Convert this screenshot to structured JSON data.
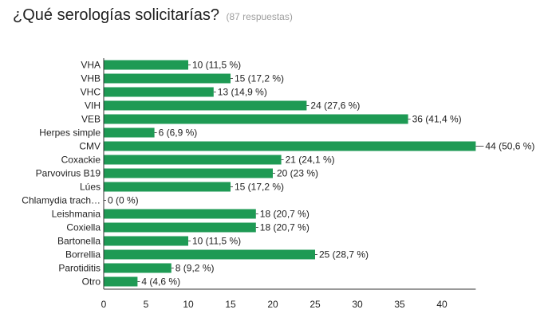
{
  "header": {
    "title": "¿Qué serologías solicitarías?",
    "subtitle": "(87 respuestas)"
  },
  "chart_data": {
    "type": "bar",
    "orientation": "horizontal",
    "categories": [
      "VHA",
      "VHB",
      "VHC",
      "VIH",
      "VEB",
      "Herpes simple",
      "CMV",
      "Coxackie",
      "Parvovirus B19",
      "Lúes",
      "Chlamydia trach…",
      "Leishmania",
      "Coxiella",
      "Bartonella",
      "Borrellia",
      "Parotiditis",
      "Otro"
    ],
    "values": [
      10,
      15,
      13,
      24,
      36,
      6,
      44,
      21,
      20,
      15,
      0,
      18,
      18,
      10,
      25,
      8,
      4
    ],
    "data_labels": [
      "10 (11,5 %)",
      "15 (17,2 %)",
      "13 (14,9 %)",
      "24 (27,6 %)",
      "36 (41,4 %)",
      "6 (6,9 %)",
      "44 (50,6 %)",
      "21 (24,1 %)",
      "20 (23 %)",
      "15 (17,2 %)",
      "0 (0 %)",
      "18 (20,7 %)",
      "18 (20,7 %)",
      "10 (11,5 %)",
      "25 (28,7 %)",
      "8 (9,2 %)",
      "4 (4,6 %)"
    ],
    "xticks": [
      "0",
      "5",
      "10",
      "15",
      "20",
      "25",
      "30",
      "35",
      "40"
    ],
    "xlim": [
      0,
      44
    ],
    "grid": false,
    "bar_color": "#1e9a54"
  }
}
